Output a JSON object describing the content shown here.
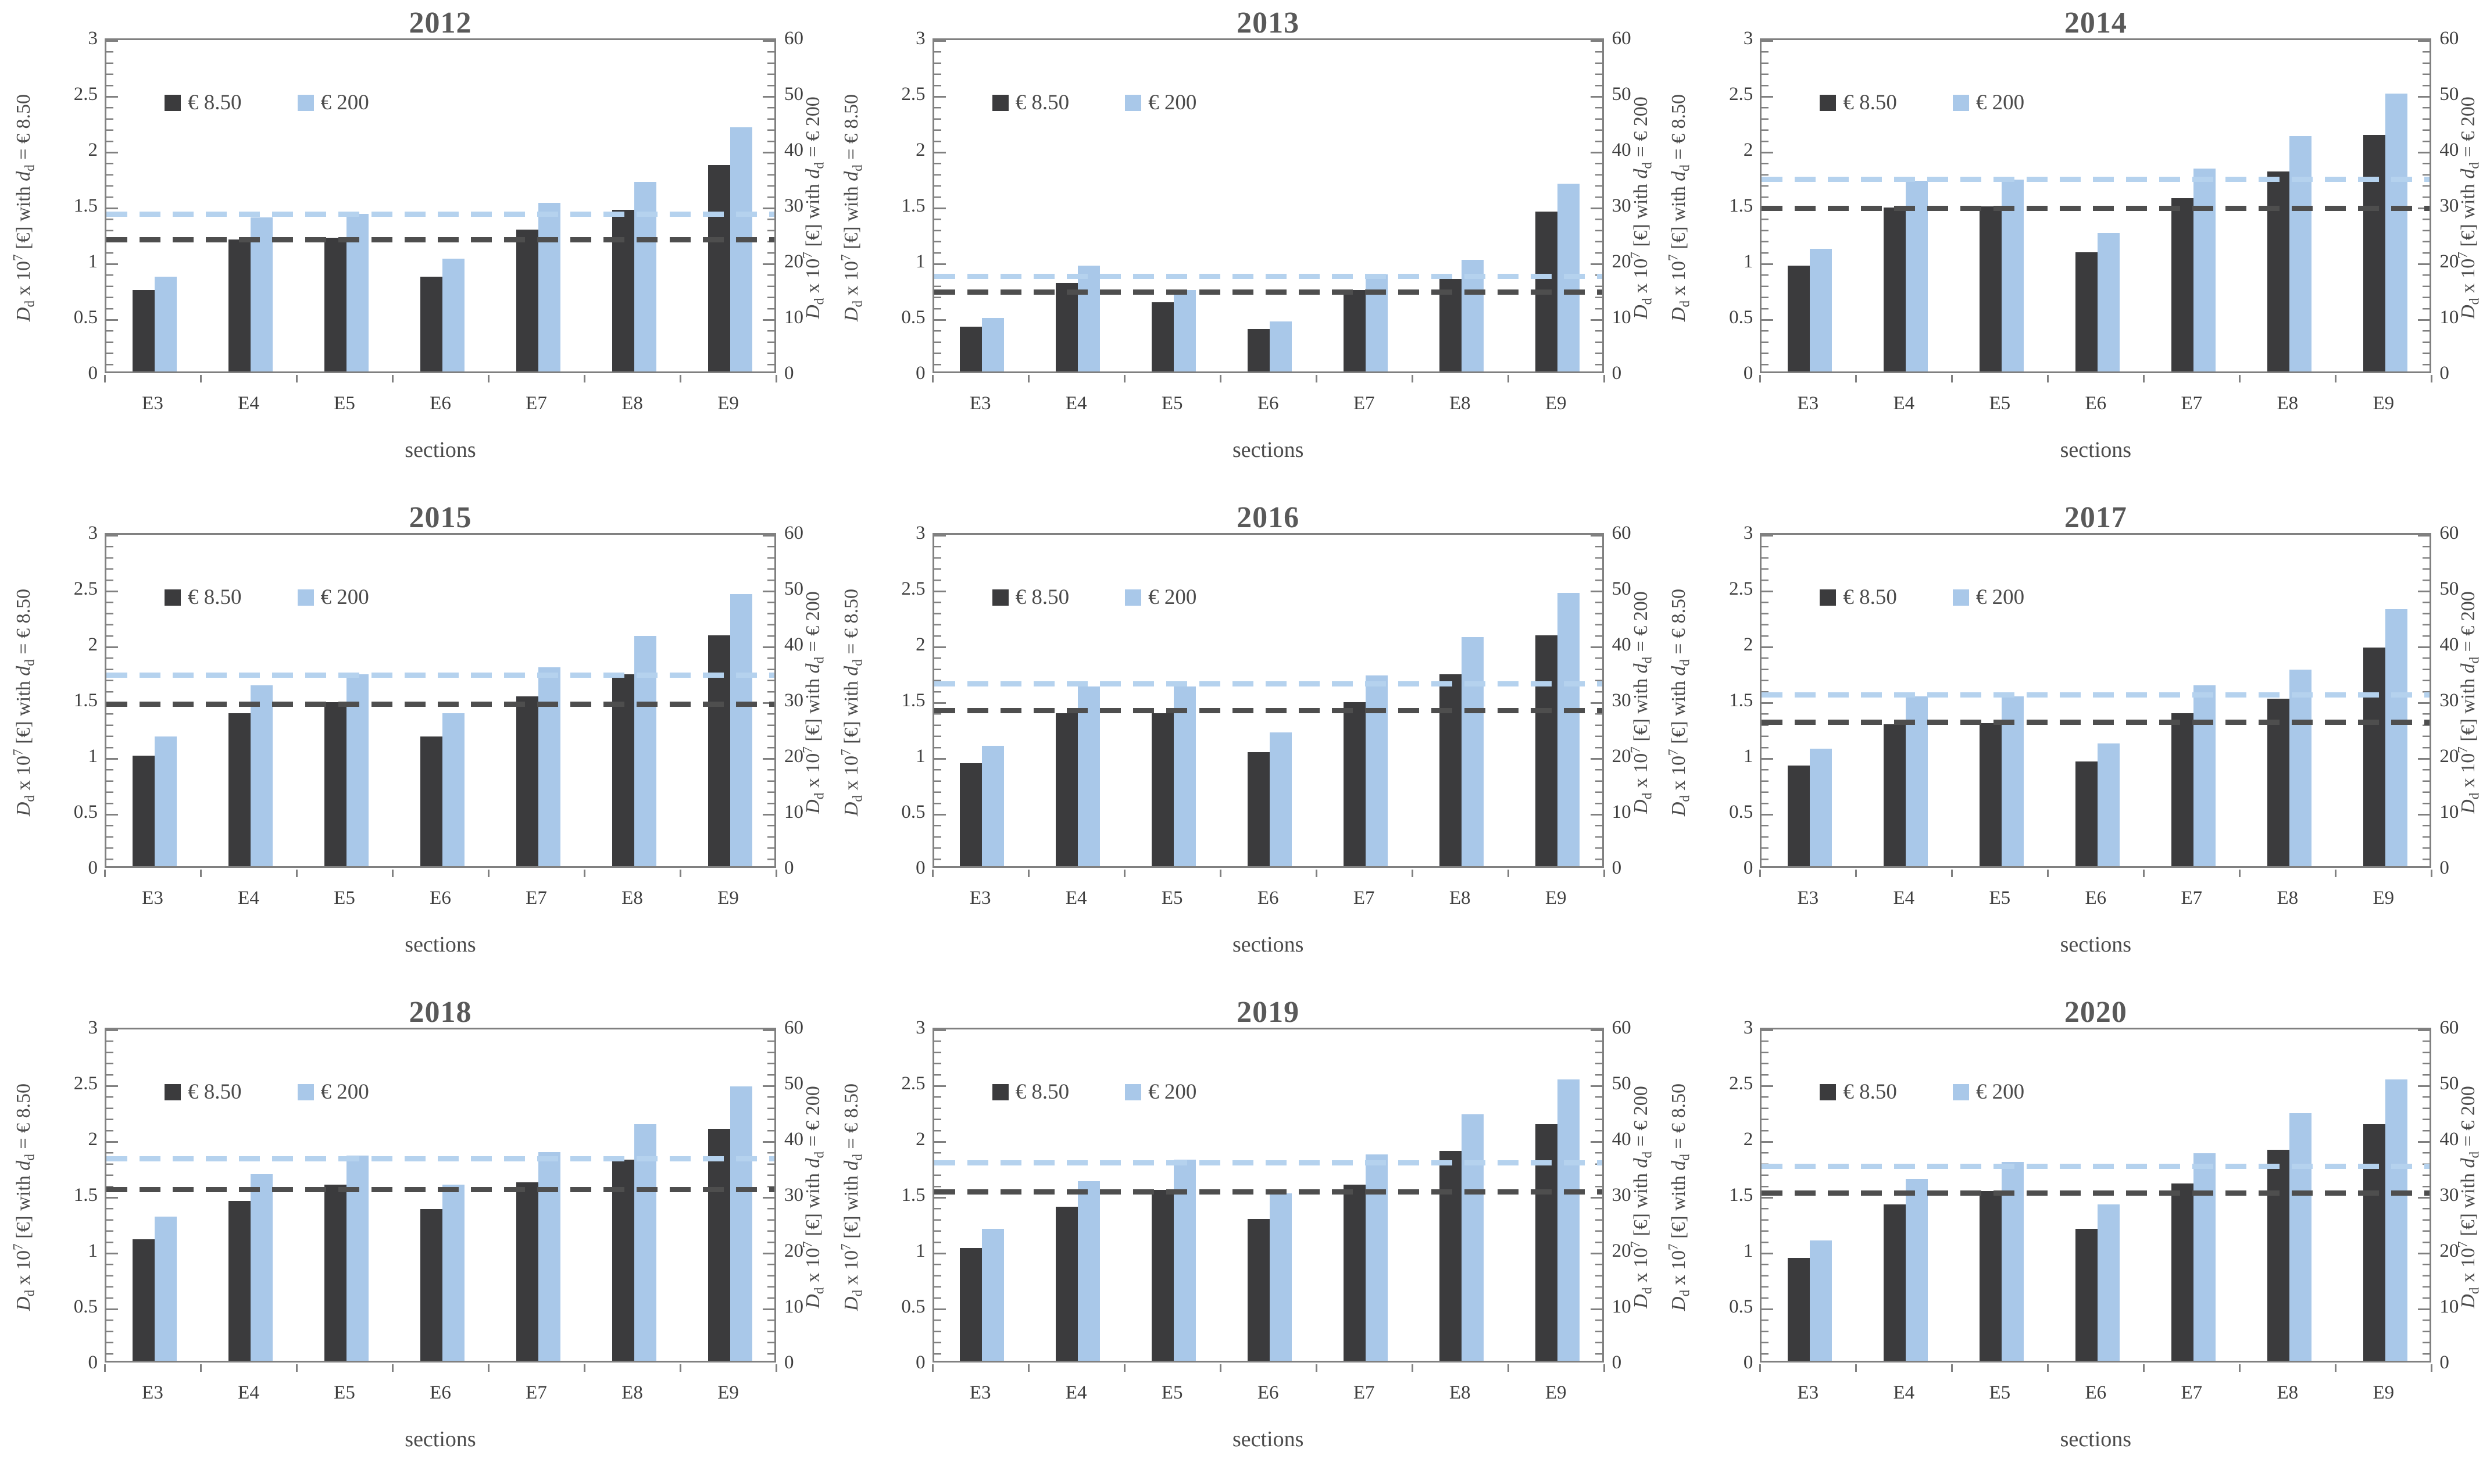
{
  "page": {
    "background": "#ffffff"
  },
  "axes": {
    "left_label": "D_d x 10^7 [€] with d_d = € 8.50",
    "right_label": "D_d x 10^7 [€] with d_d = € 200",
    "xlabel": "sections",
    "left_tick_labels": [
      "3",
      "2.5",
      "2",
      "1.5",
      "1",
      "0.5",
      "0"
    ],
    "right_tick_labels": [
      "60",
      "50",
      "40",
      "30",
      "20",
      "10",
      "0"
    ],
    "left_range": [
      0,
      3
    ],
    "right_range": [
      0,
      60
    ]
  },
  "legend": {
    "items": [
      {
        "label": "€ 8.50",
        "color": "#3b3b3d"
      },
      {
        "label": "€ 200",
        "color": "#a9c8e9"
      }
    ]
  },
  "colors": {
    "bar_dark": "#3b3b3d",
    "bar_blue": "#a9c8e9",
    "mean_dark": "#4e4e4e",
    "mean_blue": "#b5d2ee",
    "axis": "#808080",
    "title_text": "#595959",
    "tick_text": "#3f3f3f",
    "label_text": "#4c4c4c"
  },
  "chart_data": {
    "type": "bar",
    "layout": "3x3-grid, grouped bars, dual y-axes, dashed mean lines, legend top-left, grid off",
    "categories": [
      "E3",
      "E4",
      "E5",
      "E6",
      "E7",
      "E8",
      "E9"
    ],
    "series_names": [
      "€ 8.50 (left axis)",
      "€ 200 (right axis)"
    ],
    "panels": [
      {
        "title": "2012",
        "dark_values": [
          0.73,
          1.18,
          1.2,
          0.85,
          1.27,
          1.45,
          1.85
        ],
        "blue_values": [
          17.0,
          27.6,
          28.2,
          20.2,
          30.2,
          34.0,
          43.8
        ],
        "dark_mean": 1.21,
        "blue_mean": 28.8
      },
      {
        "title": "2013",
        "dark_values": [
          0.4,
          0.79,
          0.62,
          0.38,
          0.73,
          0.83,
          1.43
        ],
        "blue_values": [
          9.6,
          19.0,
          14.6,
          9.0,
          17.4,
          20.0,
          33.6
        ],
        "dark_mean": 0.74,
        "blue_mean": 17.6
      },
      {
        "title": "2014",
        "dark_values": [
          0.95,
          1.47,
          1.48,
          1.07,
          1.55,
          1.79,
          2.12
        ],
        "blue_values": [
          22.0,
          34.2,
          34.4,
          24.8,
          36.4,
          42.2,
          49.8
        ],
        "dark_mean": 1.49,
        "blue_mean": 35.0
      },
      {
        "title": "2015",
        "dark_values": [
          0.99,
          1.37,
          1.47,
          1.16,
          1.52,
          1.72,
          2.07
        ],
        "blue_values": [
          23.2,
          32.4,
          34.4,
          27.4,
          35.6,
          41.2,
          48.8
        ],
        "dark_mean": 1.48,
        "blue_mean": 34.8
      },
      {
        "title": "2016",
        "dark_values": [
          0.92,
          1.37,
          1.37,
          1.02,
          1.47,
          1.72,
          2.07
        ],
        "blue_values": [
          21.6,
          32.2,
          32.2,
          24.0,
          34.2,
          41.0,
          49.0
        ],
        "dark_mean": 1.42,
        "blue_mean": 33.2
      },
      {
        "title": "2017",
        "dark_values": [
          0.9,
          1.27,
          1.28,
          0.94,
          1.37,
          1.5,
          1.96
        ],
        "blue_values": [
          21.0,
          30.4,
          30.4,
          22.0,
          32.4,
          35.2,
          46.0
        ],
        "dark_mean": 1.32,
        "blue_mean": 31.2
      },
      {
        "title": "2018",
        "dark_values": [
          1.09,
          1.43,
          1.58,
          1.36,
          1.6,
          1.8,
          2.08
        ],
        "blue_values": [
          25.8,
          33.4,
          36.8,
          31.6,
          37.4,
          42.4,
          49.2
        ],
        "dark_mean": 1.56,
        "blue_mean": 36.8
      },
      {
        "title": "2019",
        "dark_values": [
          1.01,
          1.38,
          1.53,
          1.27,
          1.58,
          1.88,
          2.12
        ],
        "blue_values": [
          23.6,
          32.2,
          36.0,
          30.0,
          37.0,
          44.2,
          50.4
        ],
        "dark_mean": 1.54,
        "blue_mean": 36.0
      },
      {
        "title": "2020",
        "dark_values": [
          0.92,
          1.4,
          1.52,
          1.18,
          1.59,
          1.89,
          2.12
        ],
        "blue_values": [
          21.6,
          32.6,
          35.6,
          28.0,
          37.2,
          44.4,
          50.4
        ],
        "dark_mean": 1.53,
        "blue_mean": 35.4
      }
    ]
  }
}
